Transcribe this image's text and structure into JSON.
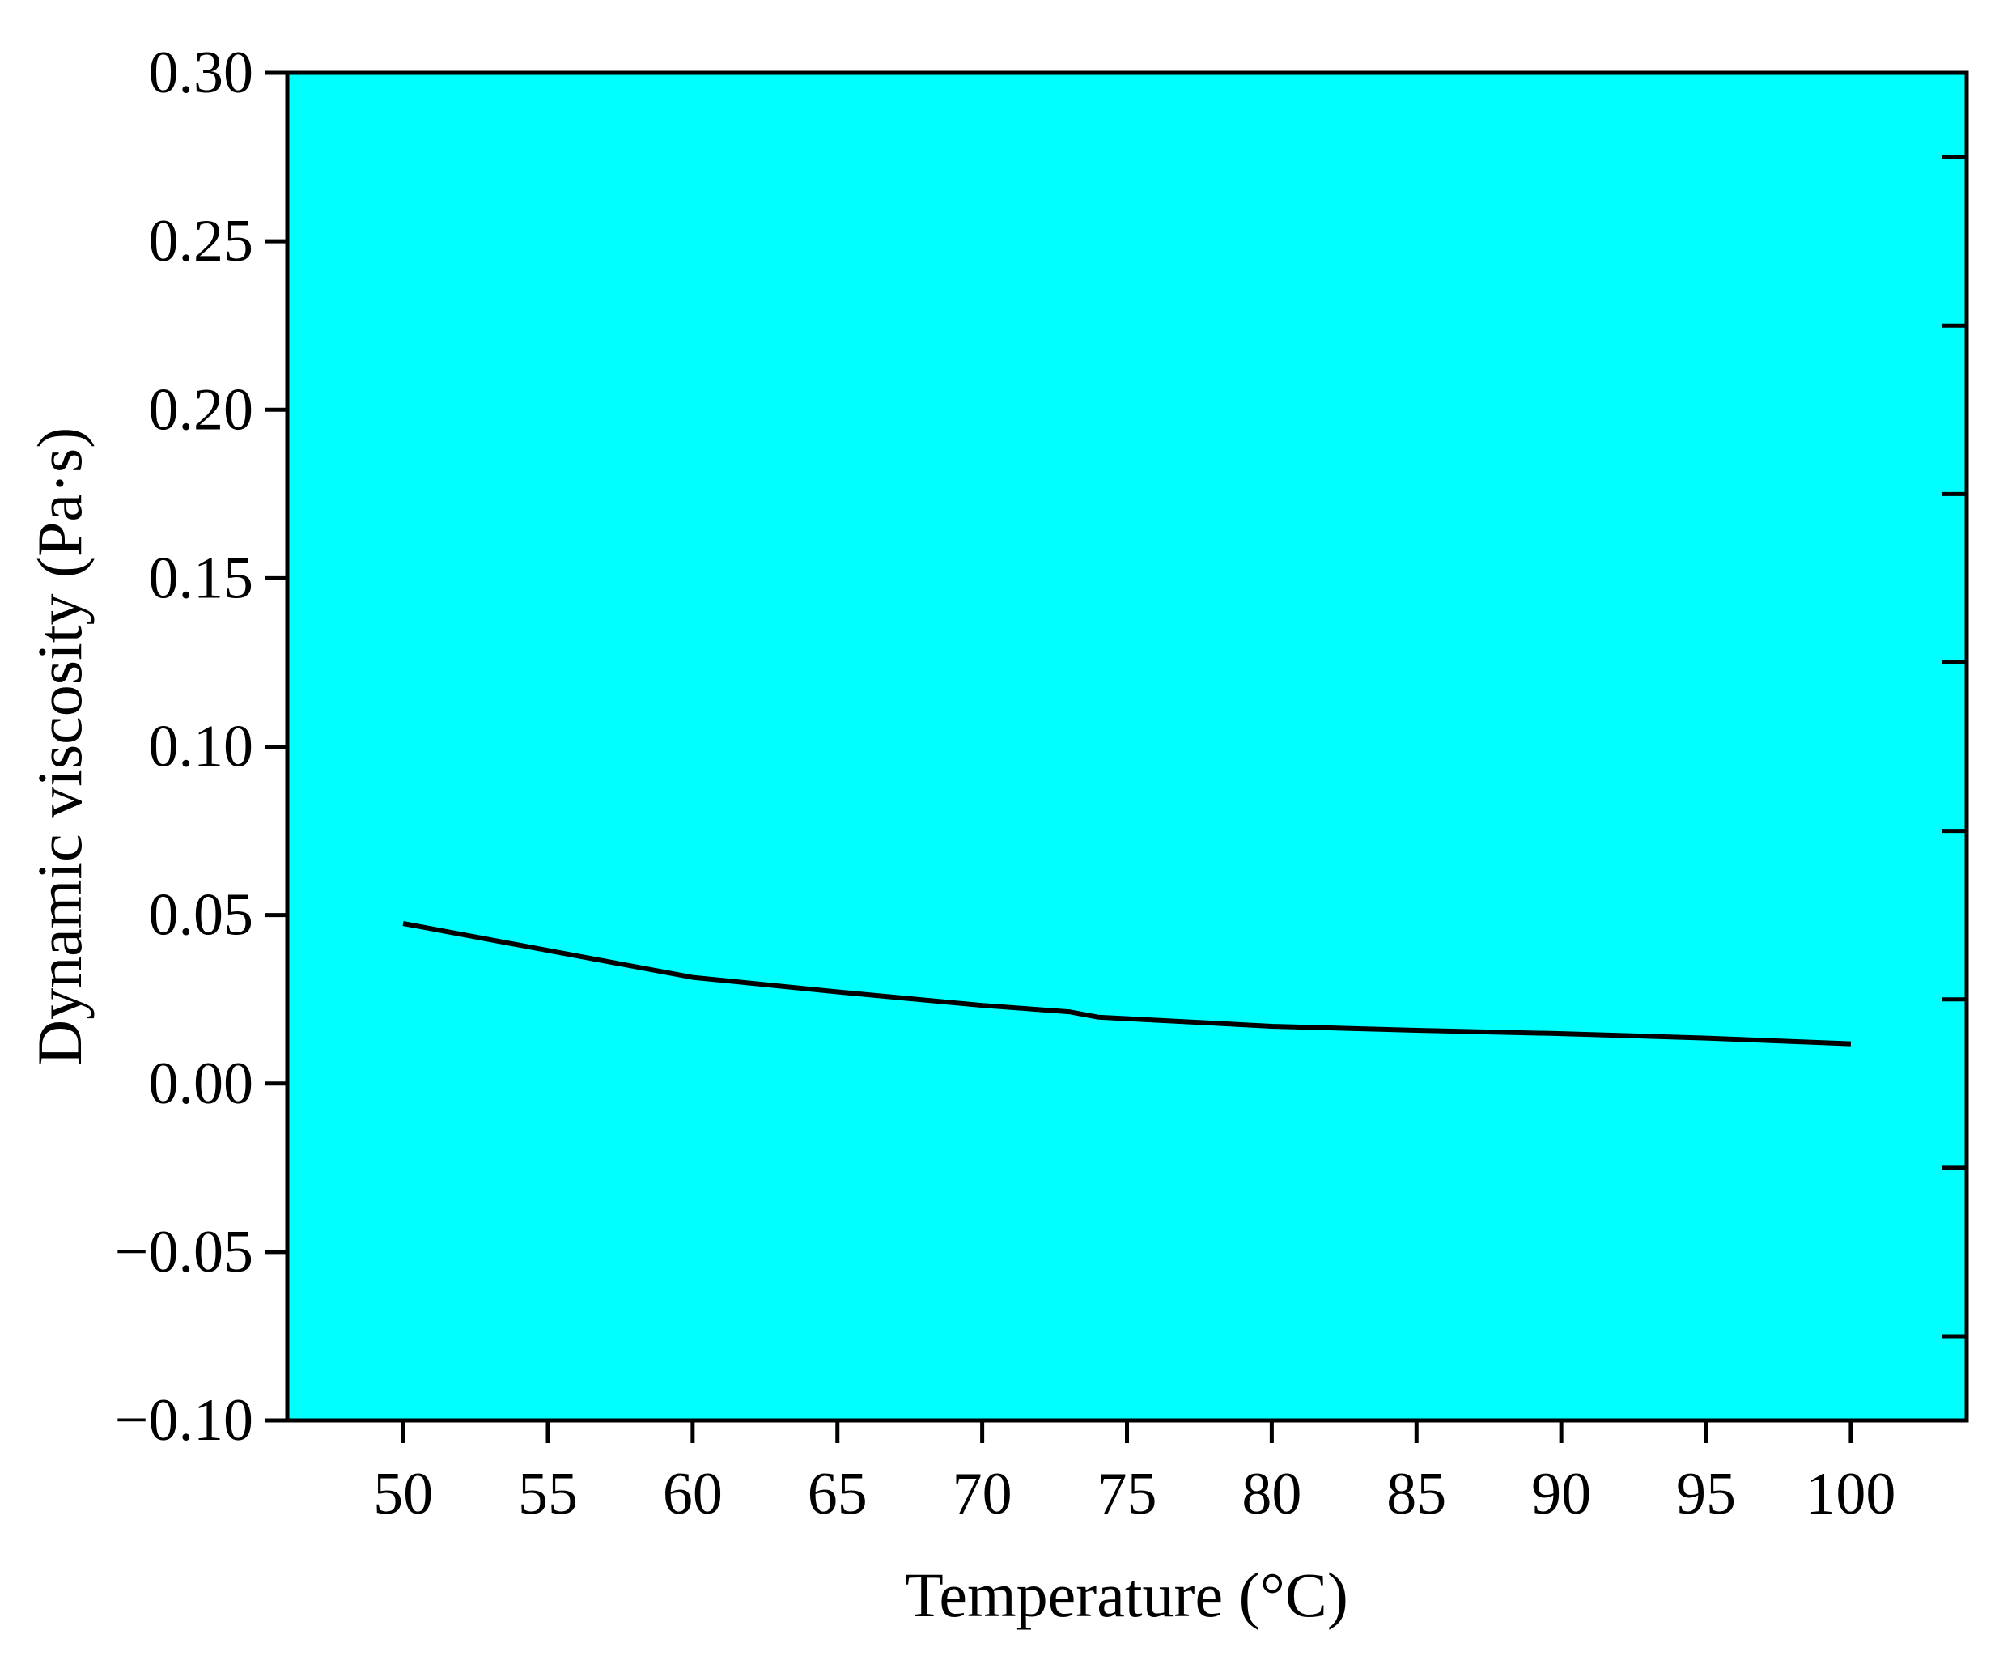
{
  "chart_data": {
    "type": "line",
    "title": "",
    "xlabel": "Temperature (°C)",
    "ylabel": "Dynamic viscosity (Pa·s)",
    "xlim": [
      46,
      104
    ],
    "ylim": [
      -0.1,
      0.3
    ],
    "xticks": [
      50,
      55,
      60,
      65,
      70,
      75,
      80,
      85,
      90,
      95,
      100
    ],
    "xtick_labels": [
      "50",
      "55",
      "60",
      "65",
      "70",
      "75",
      "80",
      "85",
      "90",
      "95",
      "100"
    ],
    "yticks": [
      -0.1,
      -0.05,
      0.0,
      0.05,
      0.1,
      0.15,
      0.2,
      0.25,
      0.3
    ],
    "ytick_labels": [
      "−0.10",
      "−0.05",
      "0.00",
      "0.05",
      "0.10",
      "0.15",
      "0.20",
      "0.25",
      "0.30"
    ],
    "grid": false,
    "legend": "none",
    "background_color": "#00ffff",
    "line_color": "#000000",
    "series": [
      {
        "x": [
          50,
          55,
          60,
          65,
          70,
          73,
          74,
          80,
          85,
          90,
          95,
          100
        ],
        "values": [
          0.0475,
          0.0395,
          0.0315,
          0.0272,
          0.0232,
          0.0213,
          0.0197,
          0.017,
          0.0158,
          0.0148,
          0.0135,
          0.0118
        ]
      }
    ]
  }
}
